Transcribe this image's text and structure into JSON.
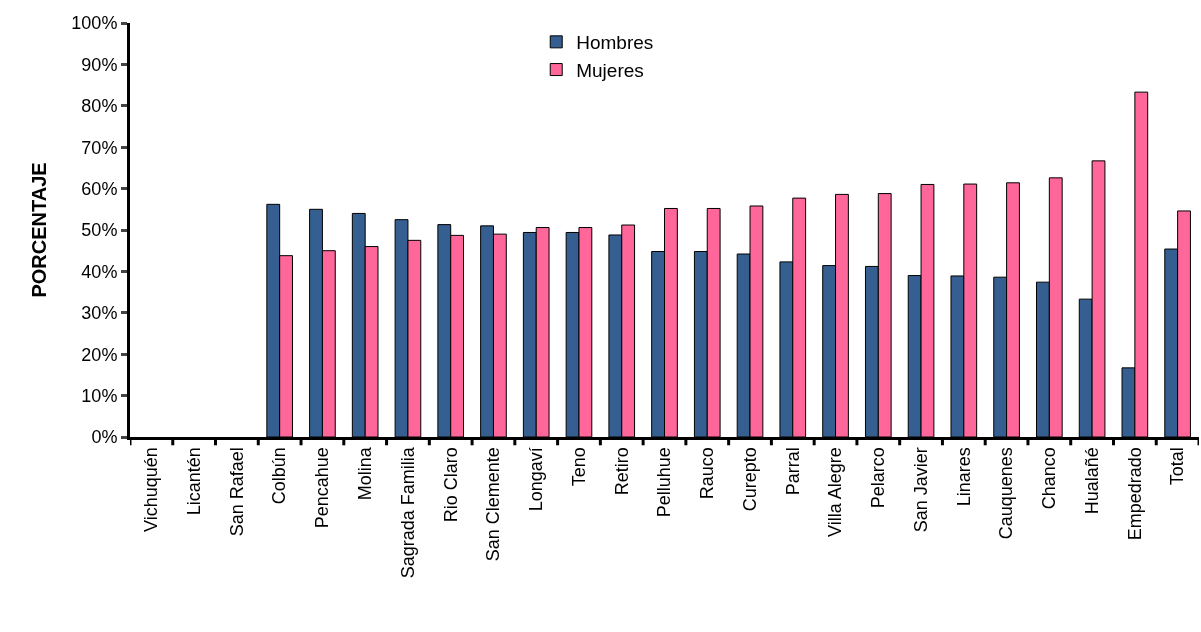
{
  "chart_data": {
    "type": "bar",
    "ylabel": "PORCENTAJE",
    "categories": [
      "Vichuquén",
      "Licantén",
      "San Rafael",
      "Colbún",
      "Pencahue",
      "Molina",
      "Sagrada Familia",
      "Rio Claro",
      "San Clemente",
      "Longaví",
      "Teno",
      "Retiro",
      "Pelluhue",
      "Rauco",
      "Curepto",
      "Parral",
      "Villa Alegre",
      "Pelarco",
      "San Javier",
      "Linares",
      "Cauquenes",
      "Chanco",
      "Hualañé",
      "Empedrado",
      "Total"
    ],
    "series": [
      {
        "name": "Hombres",
        "color": "#365f91",
        "values": [
          null,
          null,
          null,
          56.2,
          55,
          54,
          52.5,
          51.3,
          51,
          49.4,
          49.4,
          48.8,
          44.8,
          44.8,
          44.2,
          42.3,
          41.4,
          41.2,
          39,
          38.9,
          38.6,
          37.4,
          33.3,
          16.7,
          45.4
        ]
      },
      {
        "name": "Mujeres",
        "color": "#ff6699",
        "values": [
          null,
          null,
          null,
          43.8,
          45,
          46,
          47.5,
          48.7,
          49,
          50.6,
          50.6,
          51.2,
          55.2,
          55.2,
          55.8,
          57.7,
          58.6,
          58.8,
          61,
          61.1,
          61.4,
          62.6,
          66.7,
          83.3,
          54.6
        ]
      }
    ],
    "ylim": [
      0,
      100
    ],
    "yticks": [
      {
        "value": 0,
        "label": "0%"
      },
      {
        "value": 10,
        "label": "10%"
      },
      {
        "value": 20,
        "label": "20%"
      },
      {
        "value": 30,
        "label": "30%"
      },
      {
        "value": 40,
        "label": "40%"
      },
      {
        "value": 50,
        "label": "50%"
      },
      {
        "value": 60,
        "label": "60%"
      },
      {
        "value": 70,
        "label": "70%"
      },
      {
        "value": 80,
        "label": "80%"
      },
      {
        "value": 90,
        "label": "90%"
      },
      {
        "value": 100,
        "label": "100%"
      }
    ],
    "legend": "top"
  }
}
